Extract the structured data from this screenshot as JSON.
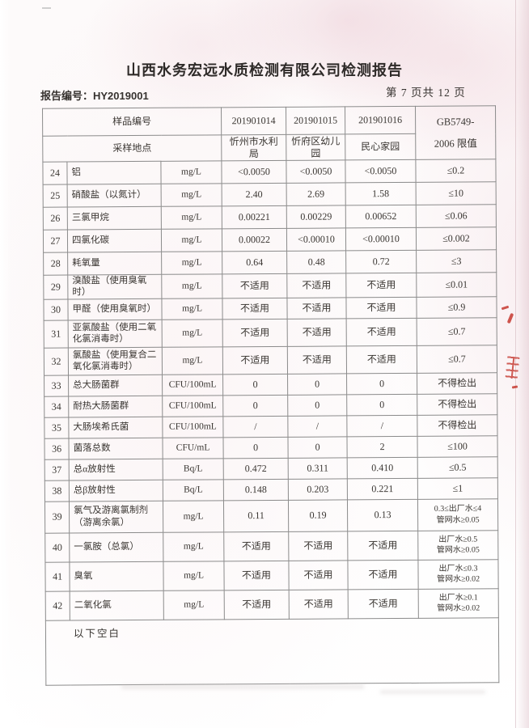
{
  "page": {
    "title": "山西水务宏远水质检测有限公司检测报告",
    "report_no": "报告编号：HY2019001",
    "page_indicator": "第 7 页共 12 页",
    "blank_note": "以下空白"
  },
  "table": {
    "header": {
      "sample_id_label": "样品编号",
      "location_label": "采样地点",
      "sample_ids": [
        "201901014",
        "201901015",
        "201901016"
      ],
      "locations": [
        "忻州市水利\n局",
        "忻府区幼儿\n园",
        "民心家园"
      ],
      "limit_label": "GB5749-\n2006 限值"
    },
    "rows": [
      {
        "no": "24",
        "name": "铝",
        "unit": "mg/L",
        "v1": "<0.0050",
        "v2": "<0.0050",
        "v3": "<0.0050",
        "limit": "≤0.2"
      },
      {
        "no": "25",
        "name": "硝酸盐（以氮计）",
        "unit": "mg/L",
        "v1": "2.40",
        "v2": "2.69",
        "v3": "1.58",
        "limit": "≤10"
      },
      {
        "no": "26",
        "name": "三氯甲烷",
        "unit": "mg/L",
        "v1": "0.00221",
        "v2": "0.00229",
        "v3": "0.00652",
        "limit": "≤0.06"
      },
      {
        "no": "27",
        "name": "四氯化碳",
        "unit": "mg/L",
        "v1": "0.00022",
        "v2": "<0.00010",
        "v3": "<0.00010",
        "limit": "≤0.002"
      },
      {
        "no": "28",
        "name": "耗氧量",
        "unit": "mg/L",
        "v1": "0.64",
        "v2": "0.48",
        "v3": "0.72",
        "limit": "≤3"
      },
      {
        "no": "29",
        "name": "溴酸盐（使用臭氧时）",
        "unit": "mg/L",
        "v1": "不适用",
        "v2": "不适用",
        "v3": "不适用",
        "limit": "≤0.01"
      },
      {
        "no": "30",
        "name": "甲醛（使用臭氧时）",
        "unit": "mg/L",
        "v1": "不适用",
        "v2": "不适用",
        "v3": "不适用",
        "limit": "≤0.9"
      },
      {
        "no": "31",
        "name": "亚氯酸盐（使用二氧\n化氯消毒时）",
        "unit": "mg/L",
        "v1": "不适用",
        "v2": "不适用",
        "v3": "不适用",
        "limit": "≤0.7"
      },
      {
        "no": "32",
        "name": "氯酸盐（使用复合二\n氧化氯消毒时）",
        "unit": "mg/L",
        "v1": "不适用",
        "v2": "不适用",
        "v3": "不适用",
        "limit": "≤0.7"
      },
      {
        "no": "33",
        "name": "总大肠菌群",
        "unit": "CFU/100mL",
        "v1": "0",
        "v2": "0",
        "v3": "0",
        "limit": "不得检出"
      },
      {
        "no": "34",
        "name": "耐热大肠菌群",
        "unit": "CFU/100mL",
        "v1": "0",
        "v2": "0",
        "v3": "0",
        "limit": "不得检出"
      },
      {
        "no": "35",
        "name": "大肠埃希氏菌",
        "unit": "CFU/100mL",
        "v1": "/",
        "v2": "/",
        "v3": "/",
        "limit": "不得检出"
      },
      {
        "no": "36",
        "name": "菌落总数",
        "unit": "CFU/mL",
        "v1": "0",
        "v2": "0",
        "v3": "2",
        "limit": "≤100"
      },
      {
        "no": "37",
        "name": "总α放射性",
        "unit": "Bq/L",
        "v1": "0.472",
        "v2": "0.311",
        "v3": "0.410",
        "limit": "≤0.5"
      },
      {
        "no": "38",
        "name": "总β放射性",
        "unit": "Bq/L",
        "v1": "0.148",
        "v2": "0.203",
        "v3": "0.221",
        "limit": "≤1"
      },
      {
        "no": "39",
        "name": "氯气及游离氯制剂\n（游离余氯）",
        "unit": "mg/L",
        "v1": "0.11",
        "v2": "0.19",
        "v3": "0.13",
        "limit": "0.3≤出厂水≤4\n管网水≥0.05"
      },
      {
        "no": "40",
        "name": "一氯胺（总氯）",
        "unit": "mg/L",
        "v1": "不适用",
        "v2": "不适用",
        "v3": "不适用",
        "limit": "出厂水≥0.5\n管网水≥0.05"
      },
      {
        "no": "41",
        "name": "臭氧",
        "unit": "mg/L",
        "v1": "不适用",
        "v2": "不适用",
        "v3": "不适用",
        "limit": "出厂水≤0.3\n管网水≥0.02"
      },
      {
        "no": "42",
        "name": "二氧化氯",
        "unit": "mg/L",
        "v1": "不适用",
        "v2": "不适用",
        "v3": "不适用",
        "limit": "出厂水≥0.1\n管网水≥0.02"
      }
    ]
  },
  "artifacts": {
    "stamp_color": "#c5382f"
  }
}
